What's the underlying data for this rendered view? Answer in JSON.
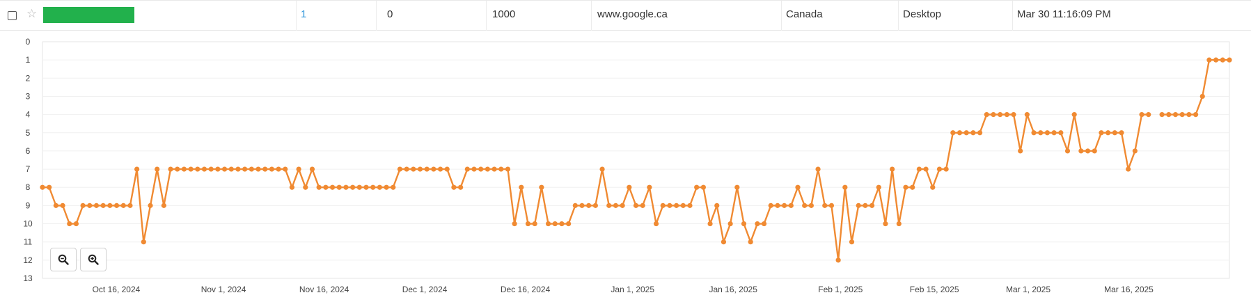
{
  "row": {
    "bar_color": "#22b14c",
    "rank": "1",
    "change": "0",
    "volume": "1000",
    "domain": "www.google.ca",
    "country": "Canada",
    "device": "Desktop",
    "updated": "Mar 30 11:16:09 PM"
  },
  "icons": {
    "star": "star-outline-icon",
    "zoom_out": "zoom-out-icon",
    "zoom_in": "zoom-in-icon"
  },
  "chart_data": {
    "type": "line",
    "title": "",
    "xlabel": "",
    "ylabel": "",
    "y_reversed": true,
    "ylim": [
      0,
      13
    ],
    "y_ticks": [
      "0",
      "1",
      "2",
      "3",
      "4",
      "5",
      "6",
      "7",
      "8",
      "9",
      "10",
      "11",
      "12",
      "13"
    ],
    "x_ticks": [
      "Oct 16, 2024",
      "Nov 1, 2024",
      "Nov 16, 2024",
      "Dec 1, 2024",
      "Dec 16, 2024",
      "Jan 1, 2025",
      "Jan 16, 2025",
      "Feb 1, 2025",
      "Feb 15, 2025",
      "Mar 1, 2025",
      "Mar 16, 2025"
    ],
    "x_start": "Oct 5, 2024",
    "x_end": "Mar 31, 2025",
    "grid": true,
    "line_color": "#f08a32",
    "values": [
      8,
      8,
      9,
      9,
      10,
      10,
      9,
      9,
      9,
      9,
      9,
      9,
      9,
      9,
      7,
      11,
      9,
      7,
      9,
      7,
      7,
      7,
      7,
      7,
      7,
      7,
      7,
      7,
      7,
      7,
      7,
      7,
      7,
      7,
      7,
      7,
      7,
      8,
      7,
      8,
      7,
      8,
      8,
      8,
      8,
      8,
      8,
      8,
      8,
      8,
      8,
      8,
      8,
      7,
      7,
      7,
      7,
      7,
      7,
      7,
      7,
      8,
      8,
      7,
      7,
      7,
      7,
      7,
      7,
      7,
      10,
      8,
      10,
      10,
      8,
      10,
      10,
      10,
      10,
      9,
      9,
      9,
      9,
      7,
      9,
      9,
      9,
      8,
      9,
      9,
      8,
      10,
      9,
      9,
      9,
      9,
      9,
      8,
      8,
      10,
      9,
      11,
      10,
      8,
      10,
      11,
      10,
      10,
      9,
      9,
      9,
      9,
      8,
      9,
      9,
      7,
      9,
      9,
      12,
      8,
      11,
      9,
      9,
      9,
      8,
      10,
      7,
      10,
      8,
      8,
      7,
      7,
      8,
      7,
      7,
      5,
      5,
      5,
      5,
      5,
      4,
      4,
      4,
      4,
      4,
      6,
      4,
      5,
      5,
      5,
      5,
      5,
      6,
      4,
      6,
      6,
      6,
      5,
      5,
      5,
      5,
      7,
      6,
      4,
      4,
      null,
      4,
      4,
      4,
      4,
      4,
      4,
      3,
      1,
      1,
      1,
      1
    ]
  }
}
